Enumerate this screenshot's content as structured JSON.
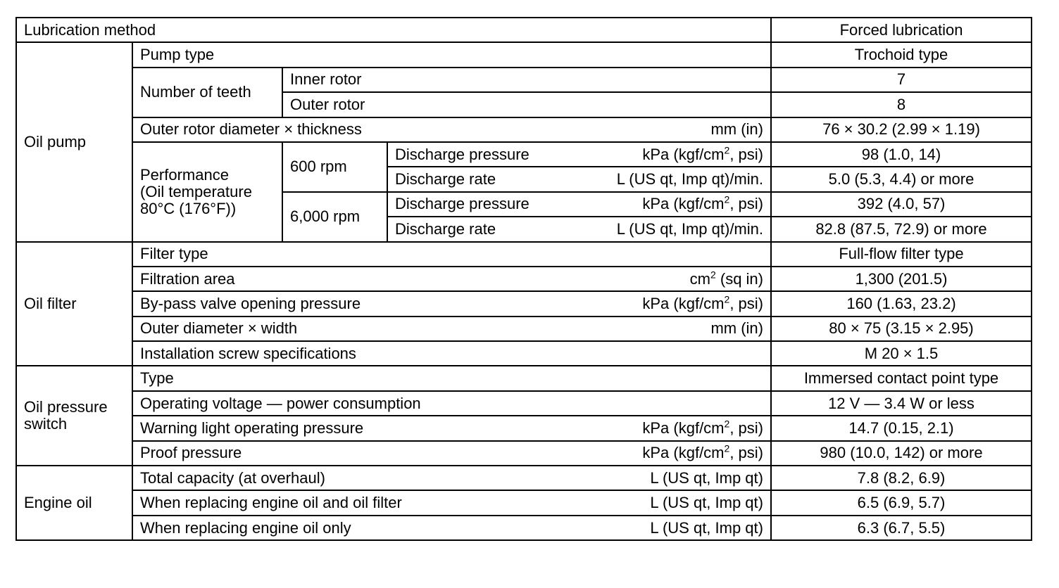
{
  "header": {
    "label": "Lubrication method",
    "value": "Forced lubrication"
  },
  "oil_pump": {
    "group": "Oil pump",
    "pump_type": {
      "label": "Pump type",
      "value": "Trochoid type"
    },
    "teeth": {
      "label": "Number of teeth",
      "inner_label": "Inner rotor",
      "inner_value": "7",
      "outer_label": "Outer rotor",
      "outer_value": "8"
    },
    "rotor_dim": {
      "label": "Outer rotor diameter × thickness",
      "unit": "mm (in)",
      "value": "76 × 30.2 (2.99 × 1.19)"
    },
    "performance": {
      "label_1": "Performance",
      "label_2": "(Oil temperature",
      "label_3": "80°C (176°F))",
      "rpm_low": "600 rpm",
      "rpm_high": "6,000 rpm",
      "dp_label": "Discharge pressure",
      "dp_unit_a": "kPa (kgf/cm",
      "dp_unit_sup": "2",
      "dp_unit_b": ", psi)",
      "dr_label": "Discharge rate",
      "dr_unit": "L (US qt, Imp qt)/min.",
      "low_dp": "98 (1.0, 14)",
      "low_dr": "5.0 (5.3, 4.4) or more",
      "high_dp": "392 (4.0, 57)",
      "high_dr": "82.8 (87.5, 72.9) or more"
    }
  },
  "oil_filter": {
    "group": "Oil filter",
    "filter_type": {
      "label": "Filter type",
      "value": "Full-flow filter type"
    },
    "area": {
      "label": "Filtration area",
      "unit_a": "cm",
      "unit_sup": "2",
      "unit_b": " (sq in)",
      "value": "1,300 (201.5)"
    },
    "bypass": {
      "label": "By-pass valve opening pressure",
      "value": "160 (1.63, 23.2)"
    },
    "dims": {
      "label": "Outer diameter × width",
      "unit": "mm (in)",
      "value": "80 × 75 (3.15 × 2.95)"
    },
    "screw": {
      "label": "Installation screw specifications",
      "value": "M 20 × 1.5"
    }
  },
  "oil_pressure_switch": {
    "group_1": "Oil pressure",
    "group_2": "switch",
    "type": {
      "label": "Type",
      "value": "Immersed contact point type"
    },
    "voltage": {
      "label": "Operating voltage — power consumption",
      "value": "12 V — 3.4 W or less"
    },
    "warning": {
      "label": "Warning light operating pressure",
      "value": "14.7 (0.15, 2.1)"
    },
    "proof": {
      "label": "Proof pressure",
      "value": "980 (10.0, 142) or more"
    }
  },
  "engine_oil": {
    "group": "Engine oil",
    "unit": "L (US qt, Imp qt)",
    "total": {
      "label": "Total capacity (at overhaul)",
      "value": "7.8 (8.2, 6.9)"
    },
    "with_filter": {
      "label": "When replacing engine oil and oil filter",
      "value": "6.5 (6.9, 5.7)"
    },
    "only": {
      "label": "When replacing engine oil only",
      "value": "6.3 (6.7, 5.5)"
    }
  }
}
